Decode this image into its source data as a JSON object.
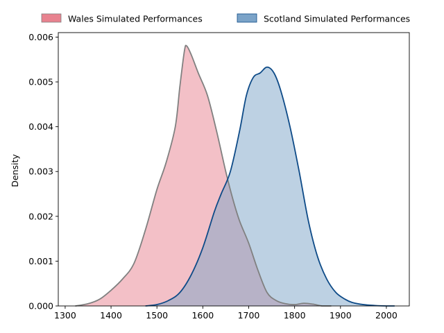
{
  "chart_data": {
    "type": "area",
    "ylabel": "Density",
    "xlabel": "",
    "xlim": [
      1285,
      2050
    ],
    "ylim": [
      0,
      0.0061
    ],
    "xticks": [
      1300,
      1400,
      1500,
      1600,
      1700,
      1800,
      1900,
      2000
    ],
    "yticks": [
      0.0,
      0.001,
      0.002,
      0.003,
      0.004,
      0.005,
      0.006
    ],
    "ytick_labels": [
      "0.000",
      "0.001",
      "0.002",
      "0.003",
      "0.004",
      "0.005",
      "0.006"
    ],
    "legend_position": "top-center, above plot",
    "series": [
      {
        "name": "Wales Simulated Performances",
        "fill_color": "#e8828f",
        "line_color": "#808080",
        "points": [
          [
            1322,
            0.0
          ],
          [
            1350,
            5e-05
          ],
          [
            1375,
            0.00015
          ],
          [
            1400,
            0.00035
          ],
          [
            1425,
            0.0006
          ],
          [
            1450,
            0.00095
          ],
          [
            1475,
            0.0017
          ],
          [
            1500,
            0.0026
          ],
          [
            1520,
            0.0032
          ],
          [
            1540,
            0.004
          ],
          [
            1550,
            0.0049
          ],
          [
            1560,
            0.0057
          ],
          [
            1565,
            0.0058
          ],
          [
            1575,
            0.0056
          ],
          [
            1590,
            0.0052
          ],
          [
            1610,
            0.0047
          ],
          [
            1630,
            0.0039
          ],
          [
            1650,
            0.003
          ],
          [
            1665,
            0.0024
          ],
          [
            1680,
            0.0019
          ],
          [
            1700,
            0.0014
          ],
          [
            1720,
            0.0008
          ],
          [
            1740,
            0.0003
          ],
          [
            1760,
            0.00012
          ],
          [
            1780,
            5e-05
          ],
          [
            1800,
            3e-05
          ],
          [
            1820,
            6e-05
          ],
          [
            1840,
            4e-05
          ],
          [
            1860,
            0.0
          ],
          [
            1880,
            0.0
          ]
        ]
      },
      {
        "name": "Scotland Simulated Performances",
        "fill_color": "#7ba3c8",
        "line_color": "#0d4a87",
        "points": [
          [
            1475,
            0.0
          ],
          [
            1500,
            3e-05
          ],
          [
            1525,
            0.00012
          ],
          [
            1550,
            0.0003
          ],
          [
            1575,
            0.0007
          ],
          [
            1600,
            0.0013
          ],
          [
            1625,
            0.0021
          ],
          [
            1640,
            0.0025
          ],
          [
            1660,
            0.003
          ],
          [
            1680,
            0.0039
          ],
          [
            1695,
            0.0047
          ],
          [
            1710,
            0.0051
          ],
          [
            1725,
            0.0052
          ],
          [
            1740,
            0.00533
          ],
          [
            1755,
            0.0052
          ],
          [
            1770,
            0.0048
          ],
          [
            1790,
            0.004
          ],
          [
            1810,
            0.003
          ],
          [
            1830,
            0.0019
          ],
          [
            1850,
            0.0011
          ],
          [
            1870,
            0.0006
          ],
          [
            1890,
            0.0003
          ],
          [
            1910,
            0.00015
          ],
          [
            1925,
            8e-05
          ],
          [
            1950,
            3e-05
          ],
          [
            1975,
            1e-05
          ],
          [
            2000,
            0.0
          ],
          [
            2018,
            0.0
          ]
        ]
      }
    ]
  }
}
